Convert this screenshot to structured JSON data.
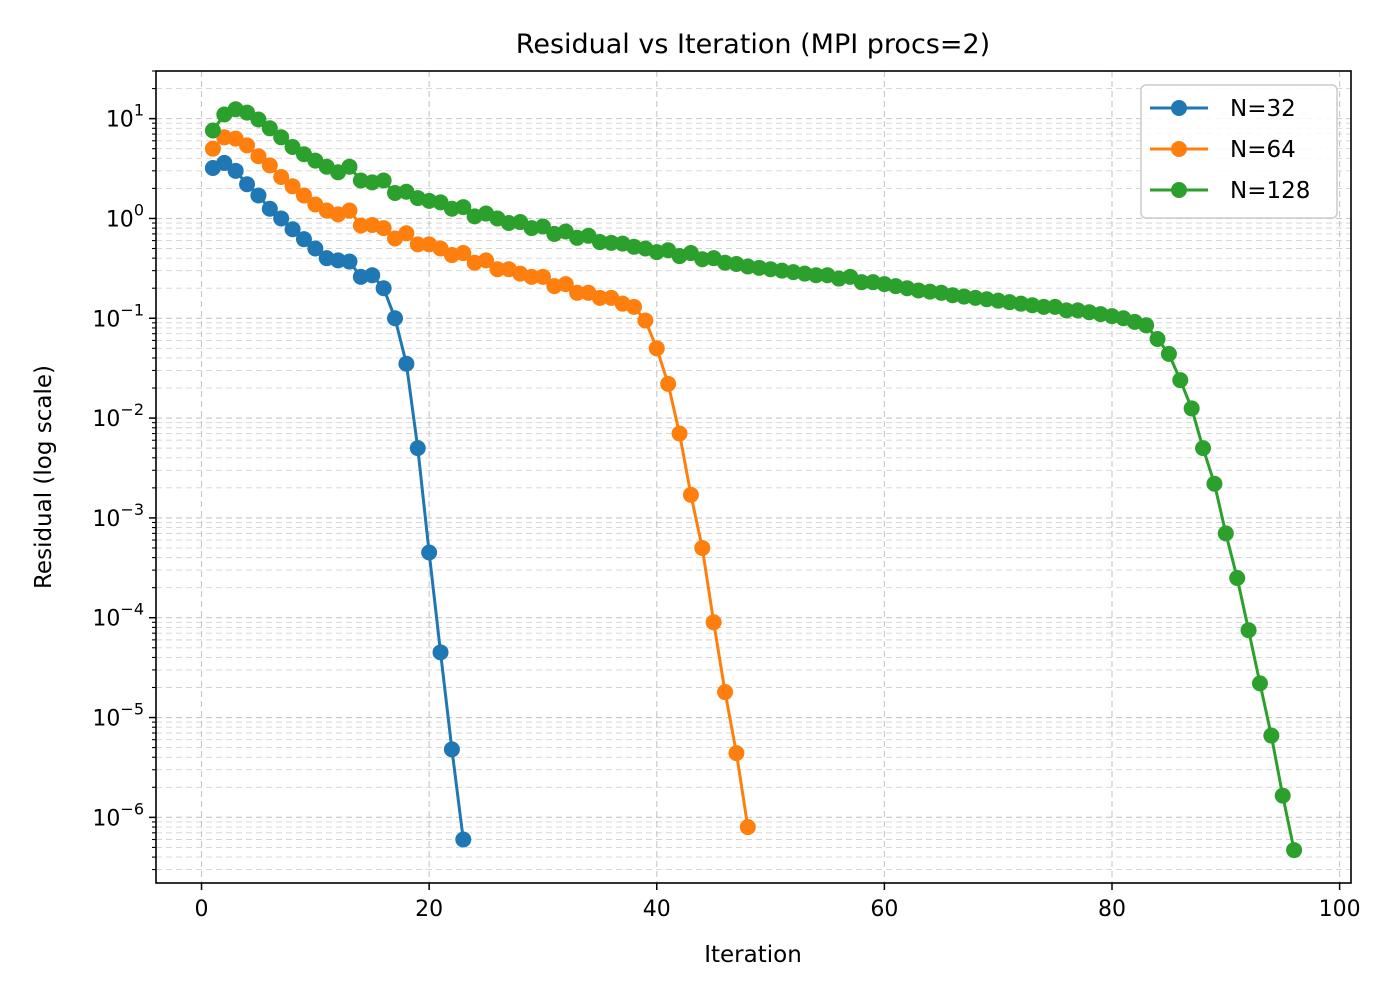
{
  "chart_data": {
    "type": "line",
    "title": "Residual vs Iteration (MPI procs=2)",
    "xlabel": "Iteration",
    "ylabel": "Residual (log scale)",
    "xlim": [
      -4,
      101
    ],
    "ylim": [
      2.2e-07,
      30
    ],
    "yscale": "log",
    "grid": true,
    "grid_minor": true,
    "legend_position": "top-right",
    "xticks": [
      0,
      20,
      40,
      60,
      80,
      100
    ],
    "yticks": [
      {
        "value": 1e-06,
        "base": "10",
        "exp": "−6"
      },
      {
        "value": 1e-05,
        "base": "10",
        "exp": "−5"
      },
      {
        "value": 0.0001,
        "base": "10",
        "exp": "−4"
      },
      {
        "value": 0.001,
        "base": "10",
        "exp": "−3"
      },
      {
        "value": 0.01,
        "base": "10",
        "exp": "−2"
      },
      {
        "value": 0.1,
        "base": "10",
        "exp": "−1"
      },
      {
        "value": 1,
        "base": "10",
        "exp": "0"
      },
      {
        "value": 10,
        "base": "10",
        "exp": "1"
      }
    ],
    "series": [
      {
        "name": "N=32",
        "color": "#1f77b4",
        "x": [
          1,
          2,
          3,
          4,
          5,
          6,
          7,
          8,
          9,
          10,
          11,
          12,
          13,
          14,
          15,
          16,
          17,
          18,
          19,
          20,
          21,
          22,
          23
        ],
        "y": [
          3.2,
          3.6,
          3.0,
          2.2,
          1.7,
          1.25,
          1.0,
          0.78,
          0.62,
          0.5,
          0.4,
          0.38,
          0.37,
          0.26,
          0.27,
          0.2,
          0.1,
          0.035,
          0.005,
          0.00045,
          4.5e-05,
          4.8e-06,
          6e-07
        ]
      },
      {
        "name": "N=64",
        "color": "#ff7f0e",
        "x": [
          1,
          2,
          3,
          4,
          5,
          6,
          7,
          8,
          9,
          10,
          11,
          12,
          13,
          14,
          15,
          16,
          17,
          18,
          19,
          20,
          21,
          22,
          23,
          24,
          25,
          26,
          27,
          28,
          29,
          30,
          31,
          32,
          33,
          34,
          35,
          36,
          37,
          38,
          39,
          40,
          41,
          42,
          43,
          44,
          45,
          46,
          47,
          48
        ],
        "y": [
          5.0,
          6.5,
          6.3,
          5.4,
          4.2,
          3.4,
          2.6,
          2.1,
          1.7,
          1.38,
          1.2,
          1.1,
          1.2,
          0.85,
          0.86,
          0.8,
          0.63,
          0.71,
          0.55,
          0.55,
          0.5,
          0.43,
          0.45,
          0.36,
          0.38,
          0.31,
          0.31,
          0.28,
          0.26,
          0.26,
          0.21,
          0.22,
          0.18,
          0.18,
          0.16,
          0.16,
          0.14,
          0.13,
          0.095,
          0.05,
          0.022,
          0.007,
          0.0017,
          0.0005,
          9e-05,
          1.8e-05,
          4.4e-06,
          8e-07
        ]
      },
      {
        "name": "N=128",
        "color": "#2ca02c",
        "x": [
          1,
          2,
          3,
          4,
          5,
          6,
          7,
          8,
          9,
          10,
          11,
          12,
          13,
          14,
          15,
          16,
          17,
          18,
          19,
          20,
          21,
          22,
          23,
          24,
          25,
          26,
          27,
          28,
          29,
          30,
          31,
          32,
          33,
          34,
          35,
          36,
          37,
          38,
          39,
          40,
          41,
          42,
          43,
          44,
          45,
          46,
          47,
          48,
          49,
          50,
          51,
          52,
          53,
          54,
          55,
          56,
          57,
          58,
          59,
          60,
          61,
          62,
          63,
          64,
          65,
          66,
          67,
          68,
          69,
          70,
          71,
          72,
          73,
          74,
          75,
          76,
          77,
          78,
          79,
          80,
          81,
          82,
          83,
          84,
          85,
          86,
          87,
          88,
          89,
          90,
          91,
          92,
          93,
          94,
          95,
          96
        ],
        "y": [
          7.6,
          11.0,
          12.4,
          11.5,
          9.8,
          8.0,
          6.5,
          5.2,
          4.4,
          3.8,
          3.3,
          2.9,
          3.3,
          2.4,
          2.3,
          2.4,
          1.8,
          1.85,
          1.6,
          1.5,
          1.45,
          1.25,
          1.3,
          1.05,
          1.12,
          1.0,
          0.9,
          0.92,
          0.8,
          0.83,
          0.7,
          0.74,
          0.64,
          0.67,
          0.58,
          0.57,
          0.56,
          0.52,
          0.5,
          0.46,
          0.48,
          0.42,
          0.45,
          0.39,
          0.4,
          0.36,
          0.35,
          0.33,
          0.32,
          0.31,
          0.3,
          0.29,
          0.28,
          0.27,
          0.27,
          0.25,
          0.26,
          0.23,
          0.23,
          0.22,
          0.21,
          0.2,
          0.19,
          0.185,
          0.18,
          0.17,
          0.165,
          0.16,
          0.155,
          0.15,
          0.145,
          0.14,
          0.135,
          0.13,
          0.13,
          0.12,
          0.12,
          0.115,
          0.11,
          0.105,
          0.1,
          0.092,
          0.085,
          0.062,
          0.044,
          0.024,
          0.0125,
          0.005,
          0.0022,
          0.0007,
          0.00025,
          7.5e-05,
          2.2e-05,
          6.6e-06,
          1.65e-06,
          4.7e-07
        ]
      }
    ]
  }
}
